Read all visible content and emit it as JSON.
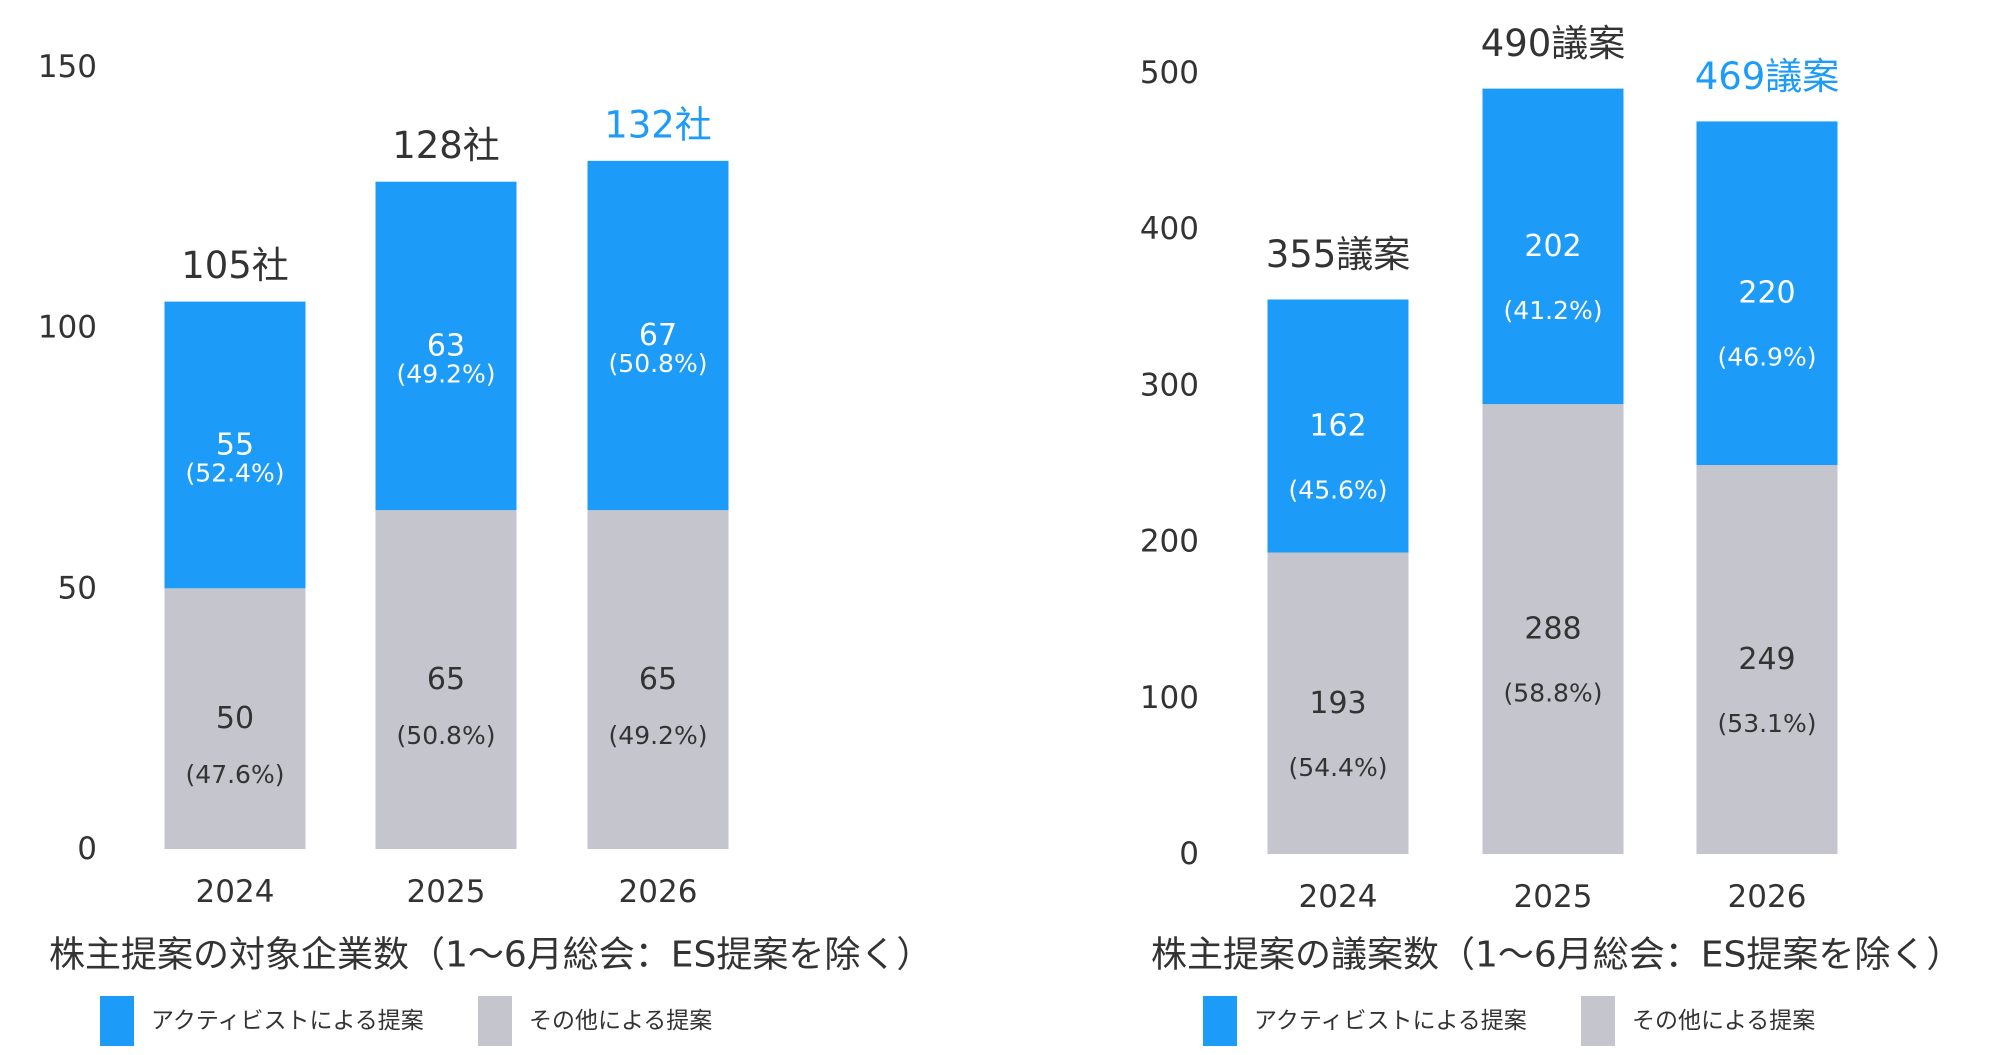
{
  "chart_data": [
    {
      "type": "bar",
      "stacked": true,
      "title": "株主提案の対象企業数（1～6月総会：ES提案を除く）",
      "categories": [
        "2024",
        "2025",
        "2026"
      ],
      "ylim": [
        0,
        150
      ],
      "yticks": [
        0,
        50,
        100,
        150
      ],
      "grid": false,
      "legend_placement": "bottom",
      "series": [
        {
          "name": "その他による提案",
          "values": [
            50,
            65,
            65
          ],
          "percent_labels": [
            "(47.6%)",
            "(50.8%)",
            "(49.2%)"
          ],
          "color": "#c5c5cd",
          "label_color": "#333333"
        },
        {
          "name": "アクティビストによる提案",
          "values": [
            55,
            63,
            67
          ],
          "percent_labels": [
            "(52.4%)",
            "(49.2%)",
            "(50.8%)"
          ],
          "color": "#1c9bf9",
          "label_color": "#ffffff"
        }
      ],
      "total_labels": [
        "105社",
        "128社",
        "132社"
      ],
      "total_label_colors": [
        "#333333",
        "#333333",
        "#1c9bf9"
      ]
    },
    {
      "type": "bar",
      "stacked": true,
      "title": "株主提案の議案数（1～6月総会：ES提案を除く）",
      "categories": [
        "2024",
        "2025",
        "2026"
      ],
      "ylim": [
        0,
        500
      ],
      "yticks": [
        0,
        100,
        200,
        300,
        400,
        500
      ],
      "grid": false,
      "legend_placement": "bottom",
      "series": [
        {
          "name": "その他による提案",
          "values": [
            193,
            288,
            249
          ],
          "percent_labels": [
            "(54.4%)",
            "(58.8%)",
            "(53.1%)"
          ],
          "color": "#c5c5cd",
          "label_color": "#333333"
        },
        {
          "name": "アクティビストによる提案",
          "values": [
            162,
            202,
            220
          ],
          "percent_labels": [
            "(45.6%)",
            "(41.2%)",
            "(46.9%)"
          ],
          "color": "#1c9bf9",
          "label_color": "#ffffff"
        }
      ],
      "total_labels": [
        "355議案",
        "490議案",
        "469議案"
      ],
      "total_label_colors": [
        "#333333",
        "#333333",
        "#1c9bf9"
      ]
    }
  ]
}
